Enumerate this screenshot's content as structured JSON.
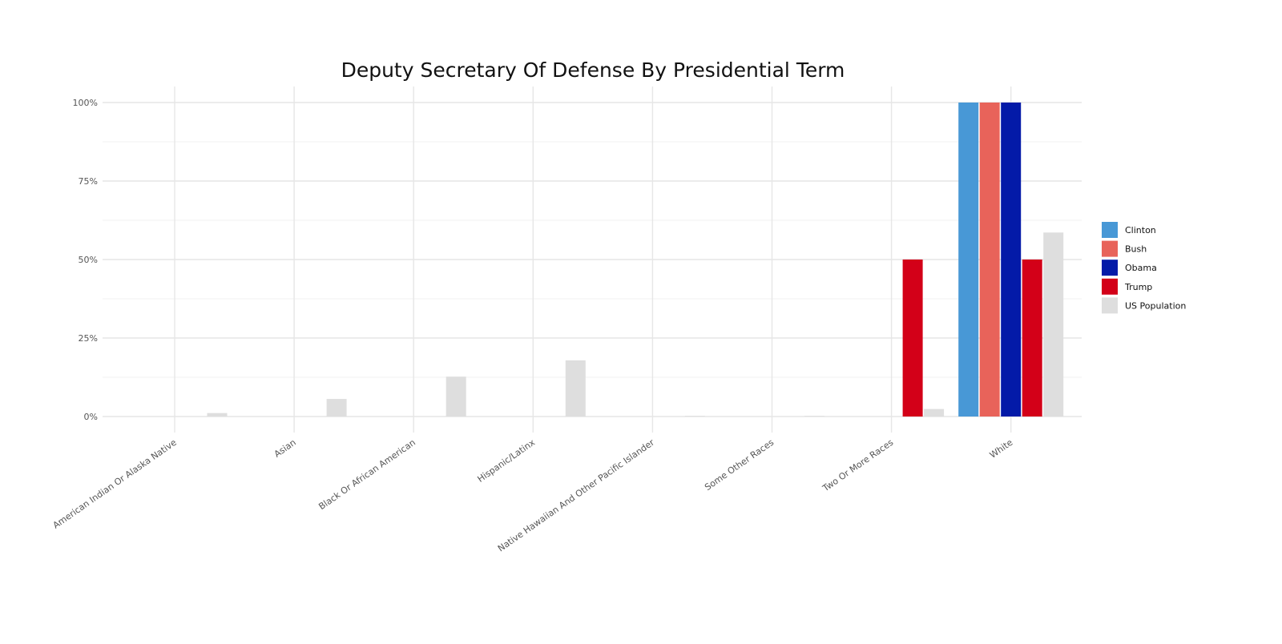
{
  "chart_data": {
    "type": "bar",
    "title": "Deputy Secretary Of Defense By Presidential Term",
    "xlabel": "",
    "ylabel": "",
    "ylim": [
      0,
      100
    ],
    "yticks": [
      0,
      25,
      50,
      75,
      100
    ],
    "ytick_labels": [
      "0%",
      "25%",
      "50%",
      "75%",
      "100%"
    ],
    "grid": true,
    "legend_position": "right",
    "categories": [
      "American Indian Or Alaska Native",
      "Asian",
      "Black Or African American",
      "Hispanic/Latinx",
      "Native Hawaiian And Other Pacific Islander",
      "Some Other Races",
      "Two Or More Races",
      "White"
    ],
    "series": [
      {
        "name": "Clinton",
        "color": "#4898d6",
        "values": [
          0,
          0,
          0,
          0,
          0,
          0,
          0,
          100
        ]
      },
      {
        "name": "Bush",
        "color": "#e8635a",
        "values": [
          0,
          0,
          0,
          0,
          0,
          0,
          0,
          100
        ]
      },
      {
        "name": "Obama",
        "color": "#031aa8",
        "values": [
          0,
          0,
          0,
          0,
          0,
          0,
          0,
          100
        ]
      },
      {
        "name": "Trump",
        "color": "#d30018",
        "values": [
          0,
          0,
          0,
          0,
          0,
          0,
          50,
          50
        ]
      },
      {
        "name": "US Population",
        "color": "#dedede",
        "values": [
          1.1,
          5.6,
          12.7,
          17.9,
          0.2,
          0.2,
          2.4,
          58.6
        ]
      }
    ]
  }
}
